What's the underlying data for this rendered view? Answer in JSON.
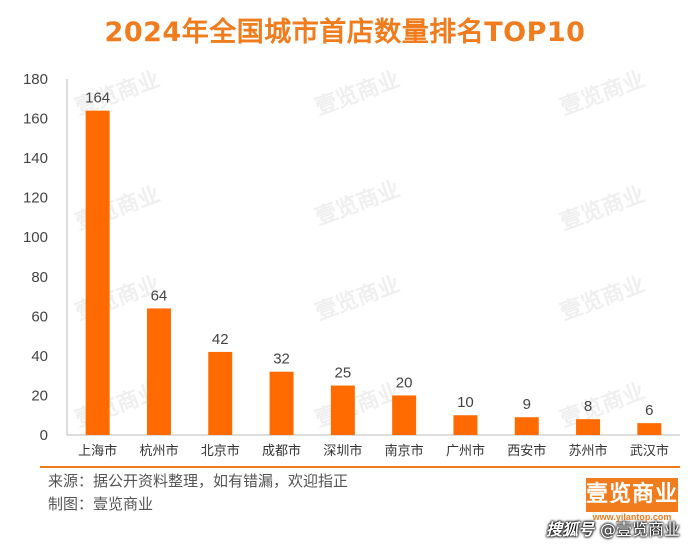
{
  "header": {
    "title": "2024年全国城市首店数量排名TOP10"
  },
  "chart_data": {
    "type": "bar",
    "title": "2024年全国城市首店数量排名TOP10",
    "xlabel": "",
    "ylabel": "",
    "categories": [
      "上海市",
      "杭州市",
      "北京市",
      "成都市",
      "深圳市",
      "南京市",
      "广州市",
      "西安市",
      "苏州市",
      "武汉市"
    ],
    "values": [
      164,
      64,
      42,
      32,
      25,
      20,
      10,
      9,
      8,
      6
    ],
    "ylim": [
      0,
      180
    ],
    "yticks": [
      0,
      20,
      40,
      60,
      80,
      100,
      120,
      140,
      160,
      180
    ],
    "grid": false,
    "legend": "none",
    "bar_color": "#ff6b00"
  },
  "watermark": {
    "text": "壹览商业"
  },
  "footer": {
    "source": "来源：据公开资料整理，如有错漏，欢迎指正",
    "made_by": "制图：壹览商业",
    "logo_text": "壹览商业",
    "site": "www.yilantop.com",
    "platform": "搜狐号",
    "credit": "@壹览商业"
  }
}
